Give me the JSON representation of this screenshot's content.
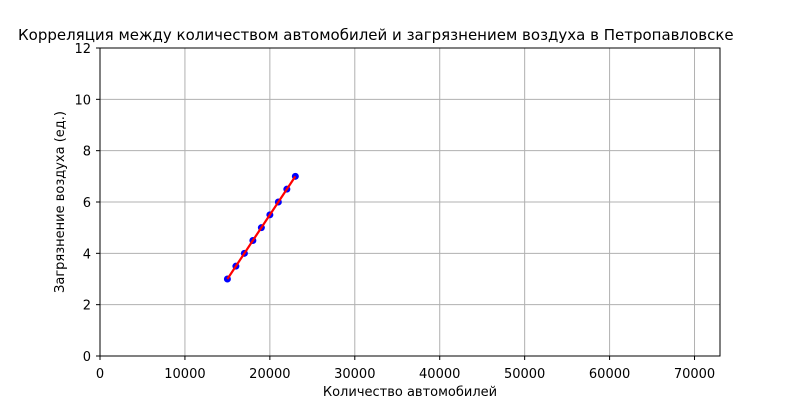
{
  "chart_data": {
    "type": "scatter",
    "title": "Корреляция между количеством автомобилей и загрязнением воздуха в Петропавловске",
    "xlabel": "Количество автомобилей",
    "ylabel": "Загрязнение воздуха (ед.)",
    "xlim": [
      0,
      73000
    ],
    "ylim": [
      0,
      12
    ],
    "x_ticks": [
      0,
      10000,
      20000,
      30000,
      40000,
      50000,
      60000,
      70000
    ],
    "x_tick_labels": [
      "0",
      "10000",
      "20000",
      "30000",
      "40000",
      "50000",
      "60000",
      "70000"
    ],
    "y_ticks": [
      0,
      2,
      4,
      6,
      8,
      10,
      12
    ],
    "y_tick_labels": [
      "0",
      "2",
      "4",
      "6",
      "8",
      "10",
      "12"
    ],
    "grid": true,
    "series": [
      {
        "kind": "scatter",
        "color": "#0000ff",
        "x": [
          15000,
          16000,
          17000,
          18000,
          19000,
          20000,
          21000,
          22000,
          23000
        ],
        "y": [
          3.0,
          3.5,
          4.0,
          4.5,
          5.0,
          5.5,
          6.0,
          6.5,
          7.0
        ]
      },
      {
        "kind": "line",
        "color": "#ff0000",
        "x": [
          15000,
          23000
        ],
        "y": [
          3.0,
          7.0
        ]
      }
    ]
  }
}
